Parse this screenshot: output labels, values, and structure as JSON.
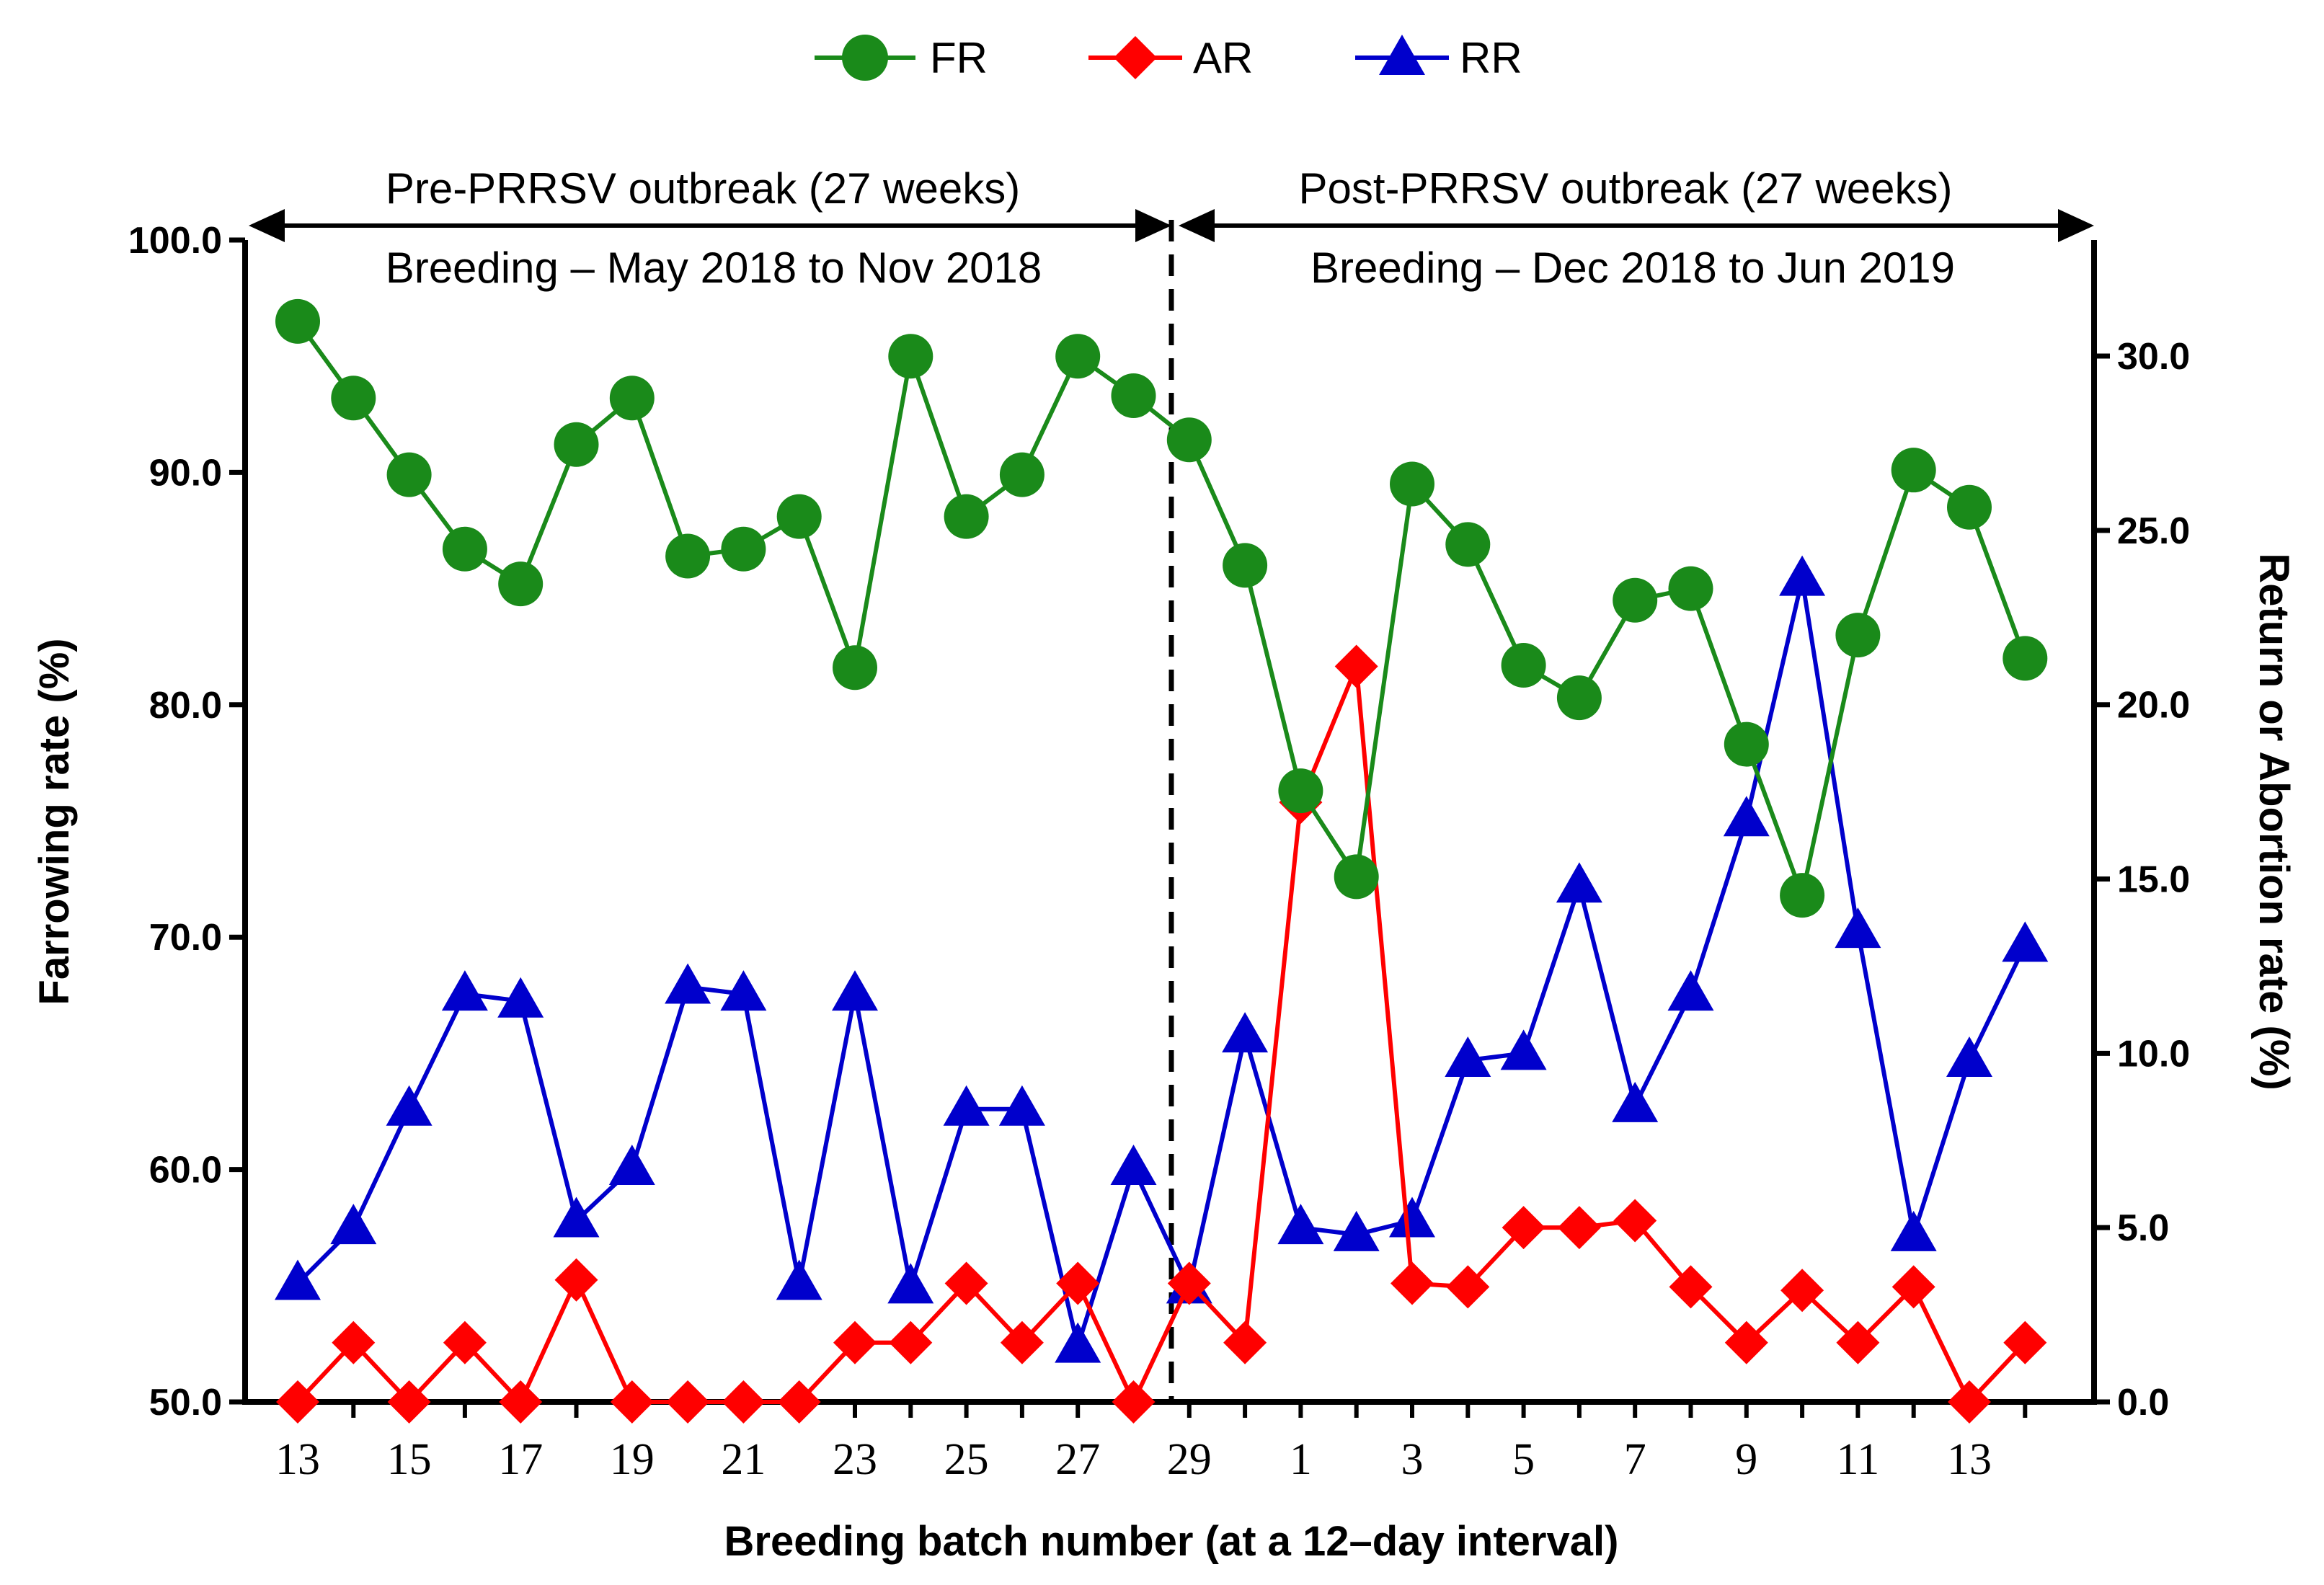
{
  "chart_data": {
    "type": "line",
    "xlabel": "Breeding batch number (at a 12–day interval)",
    "ylabel_left": "Farrowing rate (%)",
    "ylabel_right": "Return or Abortion rate (%)",
    "ylim_left": [
      50,
      100
    ],
    "ylim_right": [
      0,
      33.33
    ],
    "left_ticks": [
      "50.0",
      "60.0",
      "70.0",
      "80.0",
      "90.0",
      "100.0"
    ],
    "right_ticks": [
      "0.0",
      "5.0",
      "10.0",
      "15.0",
      "20.0",
      "25.0",
      "30.0"
    ],
    "x_batches": [
      "13",
      "14",
      "15",
      "16",
      "17",
      "18",
      "19",
      "20",
      "21",
      "22",
      "23",
      "24",
      "25",
      "26",
      "27",
      "28",
      "29",
      "30",
      "1",
      "2",
      "3",
      "4",
      "5",
      "6",
      "7",
      "8",
      "9",
      "10",
      "11",
      "12",
      "13",
      "14"
    ],
    "x_tick_labels_pre": [
      "13",
      "15",
      "17",
      "19",
      "21",
      "23",
      "25",
      "27",
      "29"
    ],
    "x_tick_labels_post": [
      "1",
      "3",
      "5",
      "7",
      "9",
      "11",
      "13"
    ],
    "legend": [
      "FR",
      "AR",
      "RR"
    ],
    "colors": {
      "FR": "#1a8a1a",
      "AR": "#ff0000",
      "RR": "#0000cc"
    },
    "periods": {
      "pre": {
        "label": "Pre-PRRSV outbreak (27 weeks)",
        "sublabel": "Breeding – May 2018 to Nov 2018"
      },
      "post": {
        "label": "Post-PRRSV outbreak (27 weeks)",
        "sublabel": "Breeding – Dec 2018 to Jun 2019"
      }
    },
    "series": [
      {
        "name": "FR",
        "axis": "left",
        "values": [
          96.5,
          93.2,
          89.9,
          86.7,
          85.2,
          91.2,
          93.2,
          86.4,
          86.7,
          88.1,
          81.6,
          95.0,
          88.1,
          89.9,
          95.0,
          93.3,
          91.4,
          86.0,
          76.3,
          72.6,
          89.5,
          86.9,
          81.7,
          80.3,
          84.5,
          85.0,
          78.3,
          71.8,
          83.0,
          90.1,
          88.5,
          82.0
        ]
      },
      {
        "name": "AR",
        "axis": "right",
        "values": [
          0.0,
          1.7,
          0.0,
          1.7,
          0.0,
          3.5,
          0.0,
          0.0,
          0.0,
          0.0,
          1.7,
          1.7,
          3.4,
          1.7,
          3.4,
          0.0,
          3.4,
          1.7,
          17.2,
          21.1,
          3.4,
          3.3,
          5.0,
          5.0,
          5.2,
          3.3,
          1.7,
          3.2,
          1.7,
          3.3,
          0.0,
          1.7
        ]
      },
      {
        "name": "RR",
        "axis": "right",
        "values": [
          3.4,
          5.0,
          8.4,
          11.7,
          11.5,
          5.2,
          6.7,
          11.9,
          11.7,
          3.4,
          11.7,
          3.3,
          8.4,
          8.4,
          1.6,
          6.7,
          3.3,
          10.5,
          5.0,
          4.8,
          5.2,
          9.8,
          10.0,
          14.8,
          8.5,
          11.7,
          16.7,
          23.6,
          13.5,
          4.8,
          9.8,
          13.1
        ]
      }
    ]
  }
}
